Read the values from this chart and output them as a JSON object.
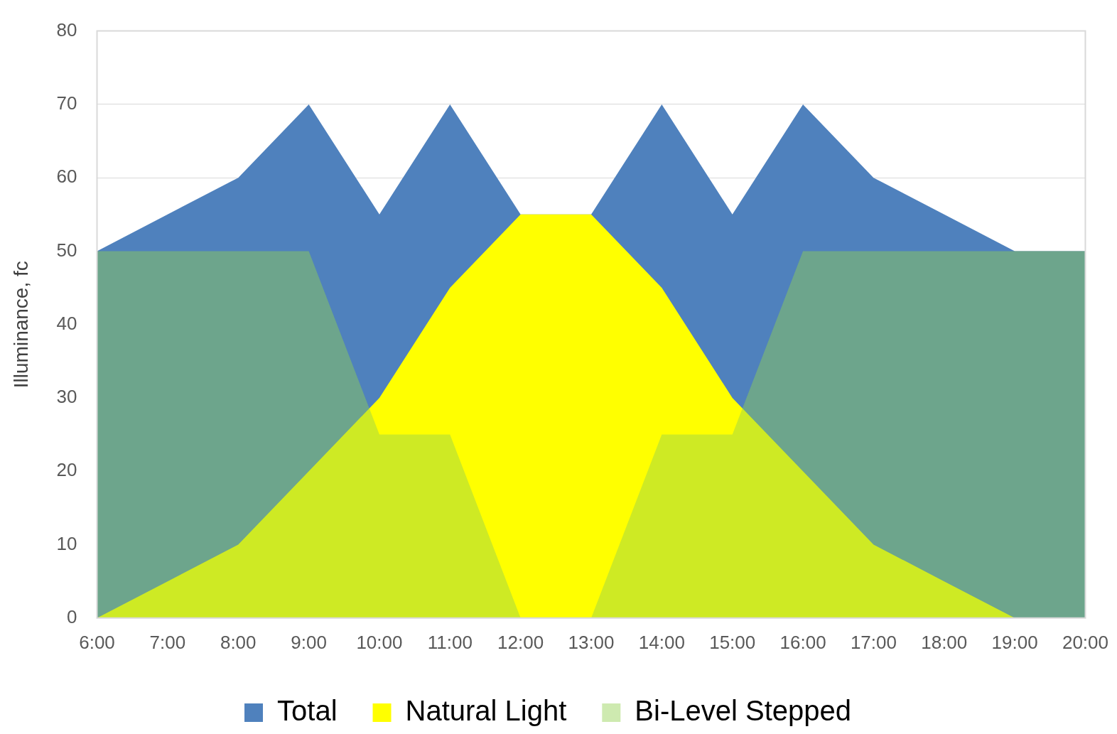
{
  "chart_data": {
    "type": "area",
    "ylabel": "Illuminance, fc",
    "categories": [
      "6:00",
      "7:00",
      "8:00",
      "9:00",
      "10:00",
      "11:00",
      "12:00",
      "13:00",
      "14:00",
      "15:00",
      "16:00",
      "17:00",
      "18:00",
      "19:00",
      "20:00"
    ],
    "series": [
      {
        "name": "Total",
        "color": "#4f81bd",
        "values": [
          50,
          55,
          60,
          70,
          55,
          70,
          55,
          55,
          70,
          55,
          70,
          60,
          55,
          50,
          50
        ]
      },
      {
        "name": "Natural Light",
        "color": "#ffff00",
        "values": [
          0,
          5,
          10,
          20,
          30,
          45,
          55,
          55,
          45,
          30,
          20,
          10,
          5,
          0,
          0
        ]
      },
      {
        "name": "Bi-Level Stepped",
        "color": "#92d050",
        "values": [
          50,
          50,
          50,
          50,
          25,
          25,
          0,
          0,
          25,
          25,
          50,
          50,
          50,
          50,
          50
        ]
      }
    ],
    "ylim": [
      0,
      80
    ],
    "yticks": [
      0,
      10,
      20,
      30,
      40,
      50,
      60,
      70,
      80
    ],
    "grid": "y",
    "legend": "bottom"
  }
}
